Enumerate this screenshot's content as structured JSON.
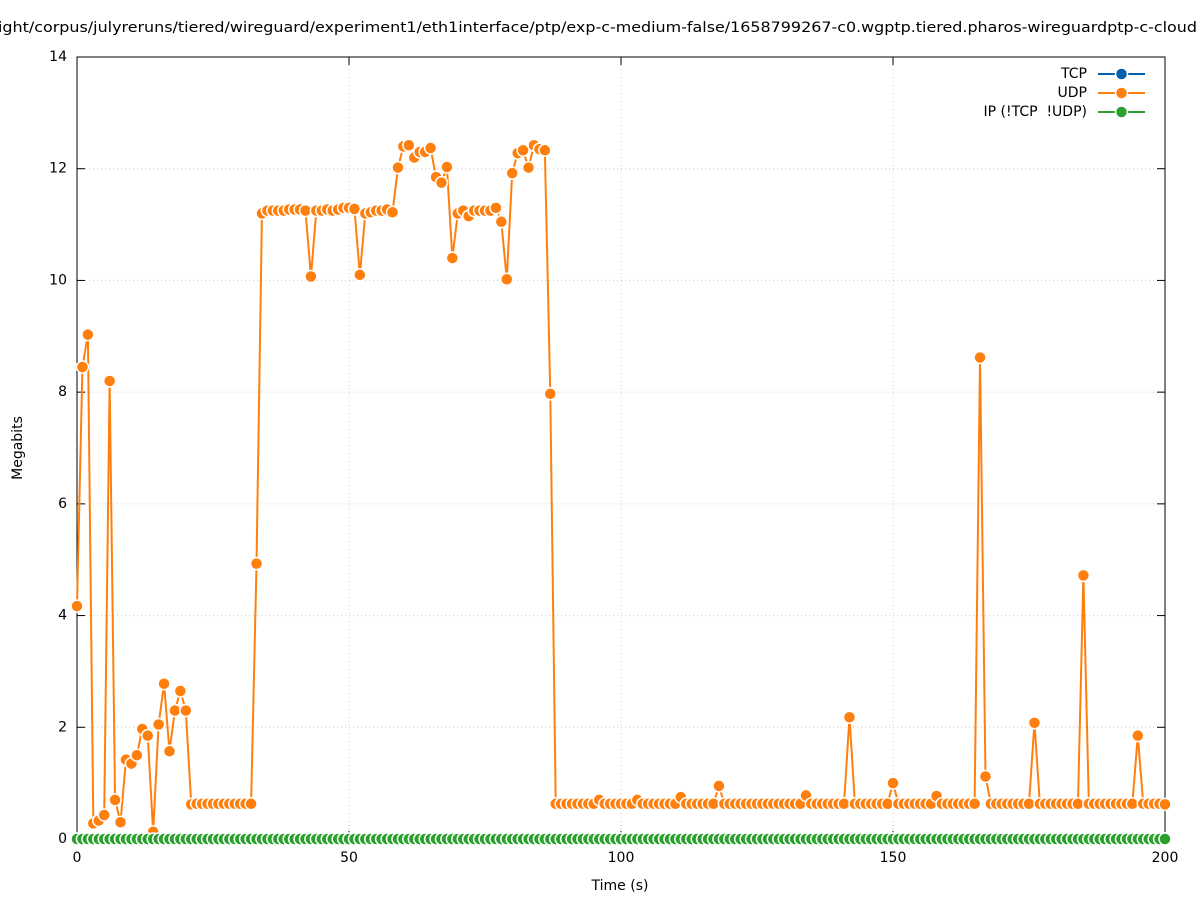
{
  "chart_data": {
    "type": "line",
    "title": "ight/corpus/julyreruns/tiered/wireguard/experiment1/eth1interface/ptp/exp-c-medium-false/1658799267-c0.wgptp.tiered.pharos-wireguardptp-c-cloud",
    "x_label": "Time (s)",
    "y_label": "Megabits",
    "xlim": [
      0,
      200
    ],
    "xticks": [
      0,
      50,
      100,
      150,
      200
    ],
    "ylim": [
      0,
      14
    ],
    "yticks": [
      0,
      2,
      4,
      6,
      8,
      10,
      12,
      14
    ],
    "grid": true,
    "legend": "top-right",
    "x": [
      0,
      1,
      2,
      3,
      4,
      5,
      6,
      7,
      8,
      9,
      10,
      11,
      12,
      13,
      14,
      15,
      16,
      17,
      18,
      19,
      20,
      21,
      22,
      23,
      24,
      25,
      26,
      27,
      28,
      29,
      30,
      31,
      32,
      33,
      34,
      35,
      36,
      37,
      38,
      39,
      40,
      41,
      42,
      43,
      44,
      45,
      46,
      47,
      48,
      49,
      50,
      51,
      52,
      53,
      54,
      55,
      56,
      57,
      58,
      59,
      60,
      61,
      62,
      63,
      64,
      65,
      66,
      67,
      68,
      69,
      70,
      71,
      72,
      73,
      74,
      75,
      76,
      77,
      78,
      79,
      80,
      81,
      82,
      83,
      84,
      85,
      86,
      87,
      88,
      89,
      90,
      91,
      92,
      93,
      94,
      95,
      96,
      97,
      98,
      99,
      100,
      101,
      102,
      103,
      104,
      105,
      106,
      107,
      108,
      109,
      110,
      111,
      112,
      113,
      114,
      115,
      116,
      117,
      118,
      119,
      120,
      121,
      122,
      123,
      124,
      125,
      126,
      127,
      128,
      129,
      130,
      131,
      132,
      133,
      134,
      135,
      136,
      137,
      138,
      139,
      140,
      141,
      142,
      143,
      144,
      145,
      146,
      147,
      148,
      149,
      150,
      151,
      152,
      153,
      154,
      155,
      156,
      157,
      158,
      159,
      160,
      161,
      162,
      163,
      164,
      165,
      166,
      167,
      168,
      169,
      170,
      171,
      172,
      173,
      174,
      175,
      176,
      177,
      178,
      179,
      180,
      181,
      182,
      183,
      184,
      185,
      186,
      187,
      188,
      189,
      190,
      191,
      192,
      193,
      194,
      195,
      196,
      197,
      198,
      199,
      200
    ],
    "series": [
      {
        "name": "TCP",
        "color": "#0060ad",
        "values": [
          0,
          0,
          0,
          0,
          0,
          0,
          0,
          0,
          0,
          0,
          0,
          0,
          0,
          0,
          0,
          0,
          0,
          0,
          0,
          0,
          0,
          0,
          0,
          0,
          0,
          0,
          0,
          0,
          0,
          0,
          0,
          0,
          0,
          0,
          0,
          0,
          0,
          0,
          0,
          0,
          0,
          0,
          0,
          0,
          0,
          0,
          0,
          0,
          0,
          0,
          0,
          0,
          0,
          0,
          0,
          0,
          0,
          0,
          0,
          0,
          0,
          0,
          0,
          0,
          0,
          0,
          0,
          0,
          0,
          0,
          0,
          0,
          0,
          0,
          0,
          0,
          0,
          0,
          0,
          0,
          0,
          0,
          0,
          0,
          0,
          0,
          0,
          0,
          0,
          0,
          0,
          0,
          0,
          0,
          0,
          0,
          0,
          0,
          0,
          0,
          0,
          0,
          0,
          0,
          0,
          0,
          0,
          0,
          0,
          0,
          0,
          0,
          0,
          0,
          0,
          0,
          0,
          0,
          0,
          0,
          0,
          0,
          0,
          0,
          0,
          0,
          0,
          0,
          0,
          0,
          0,
          0,
          0,
          0,
          0,
          0,
          0,
          0,
          0,
          0,
          0,
          0,
          0,
          0,
          0,
          0,
          0,
          0,
          0,
          0,
          0,
          0,
          0,
          0,
          0,
          0,
          0,
          0,
          0,
          0,
          0,
          0,
          0,
          0,
          0,
          0,
          0,
          0,
          0,
          0,
          0,
          0,
          0,
          0,
          0,
          0,
          0,
          0,
          0,
          0,
          0,
          0,
          0,
          0,
          0,
          0,
          0,
          0,
          0,
          0,
          0,
          0,
          0,
          0,
          0,
          0,
          0,
          0,
          0,
          0,
          0
        ]
      },
      {
        "name": "UDP",
        "color": "#ff7f0e",
        "values": [
          4.17,
          8.45,
          9.03,
          0.28,
          0.33,
          0.43,
          8.2,
          0.7,
          0.3,
          1.42,
          1.35,
          1.5,
          1.97,
          1.85,
          0.13,
          2.05,
          2.78,
          1.57,
          2.3,
          2.65,
          2.3,
          0.62,
          0.63,
          0.63,
          0.63,
          0.63,
          0.63,
          0.63,
          0.63,
          0.63,
          0.63,
          0.63,
          0.63,
          4.93,
          11.2,
          11.25,
          11.25,
          11.25,
          11.25,
          11.27,
          11.27,
          11.27,
          11.25,
          10.07,
          11.25,
          11.25,
          11.27,
          11.25,
          11.27,
          11.3,
          11.3,
          11.28,
          10.1,
          11.2,
          11.22,
          11.25,
          11.25,
          11.27,
          11.22,
          12.02,
          12.4,
          12.42,
          12.2,
          12.3,
          12.3,
          12.37,
          11.85,
          11.75,
          12.03,
          10.4,
          11.2,
          11.25,
          11.15,
          11.25,
          11.25,
          11.25,
          11.25,
          11.3,
          11.05,
          10.02,
          11.92,
          12.28,
          12.33,
          12.02,
          12.42,
          12.35,
          12.33,
          7.97,
          0.63,
          0.63,
          0.63,
          0.63,
          0.63,
          0.63,
          0.63,
          0.63,
          0.7,
          0.63,
          0.63,
          0.63,
          0.63,
          0.63,
          0.63,
          0.7,
          0.63,
          0.63,
          0.63,
          0.63,
          0.63,
          0.63,
          0.63,
          0.75,
          0.63,
          0.63,
          0.63,
          0.63,
          0.63,
          0.63,
          0.95,
          0.63,
          0.63,
          0.63,
          0.63,
          0.63,
          0.63,
          0.63,
          0.63,
          0.63,
          0.63,
          0.63,
          0.63,
          0.63,
          0.63,
          0.63,
          0.78,
          0.63,
          0.63,
          0.63,
          0.63,
          0.63,
          0.63,
          0.63,
          2.18,
          0.63,
          0.63,
          0.63,
          0.63,
          0.63,
          0.63,
          0.63,
          1.0,
          0.63,
          0.63,
          0.63,
          0.63,
          0.63,
          0.63,
          0.63,
          0.77,
          0.63,
          0.63,
          0.63,
          0.63,
          0.63,
          0.63,
          0.63,
          8.62,
          1.12,
          0.63,
          0.63,
          0.63,
          0.63,
          0.63,
          0.63,
          0.63,
          0.63,
          2.08,
          0.63,
          0.63,
          0.63,
          0.63,
          0.63,
          0.63,
          0.63,
          0.63,
          4.72,
          0.63,
          0.63,
          0.63,
          0.63,
          0.63,
          0.63,
          0.63,
          0.63,
          0.63,
          1.85,
          0.63,
          0.63,
          0.63,
          0.63,
          0.62
        ]
      },
      {
        "name": "IP (!TCP  !UDP)",
        "color": "#2ca02c",
        "values": [
          0,
          0,
          0,
          0,
          0,
          0,
          0,
          0,
          0,
          0,
          0,
          0,
          0,
          0,
          0,
          0,
          0,
          0,
          0,
          0,
          0,
          0,
          0,
          0,
          0,
          0,
          0,
          0,
          0,
          0,
          0,
          0,
          0,
          0,
          0,
          0,
          0,
          0,
          0,
          0,
          0,
          0,
          0,
          0,
          0,
          0,
          0,
          0,
          0,
          0,
          0,
          0,
          0,
          0,
          0,
          0,
          0,
          0,
          0,
          0,
          0,
          0,
          0,
          0,
          0,
          0,
          0,
          0,
          0,
          0,
          0,
          0,
          0,
          0,
          0,
          0,
          0,
          0,
          0,
          0,
          0,
          0,
          0,
          0,
          0,
          0,
          0,
          0,
          0,
          0,
          0,
          0,
          0,
          0,
          0,
          0,
          0,
          0,
          0,
          0,
          0,
          0,
          0,
          0,
          0,
          0,
          0,
          0,
          0,
          0,
          0,
          0,
          0,
          0,
          0,
          0,
          0,
          0,
          0,
          0,
          0,
          0,
          0,
          0,
          0,
          0,
          0,
          0,
          0,
          0,
          0,
          0,
          0,
          0,
          0,
          0,
          0,
          0,
          0,
          0,
          0,
          0,
          0,
          0,
          0,
          0,
          0,
          0,
          0,
          0,
          0,
          0,
          0,
          0,
          0,
          0,
          0,
          0,
          0,
          0,
          0,
          0,
          0,
          0,
          0,
          0,
          0,
          0,
          0,
          0,
          0,
          0,
          0,
          0,
          0,
          0,
          0,
          0,
          0,
          0,
          0,
          0,
          0,
          0,
          0,
          0,
          0,
          0,
          0,
          0,
          0,
          0,
          0,
          0,
          0,
          0,
          0,
          0,
          0,
          0,
          0
        ]
      }
    ]
  }
}
